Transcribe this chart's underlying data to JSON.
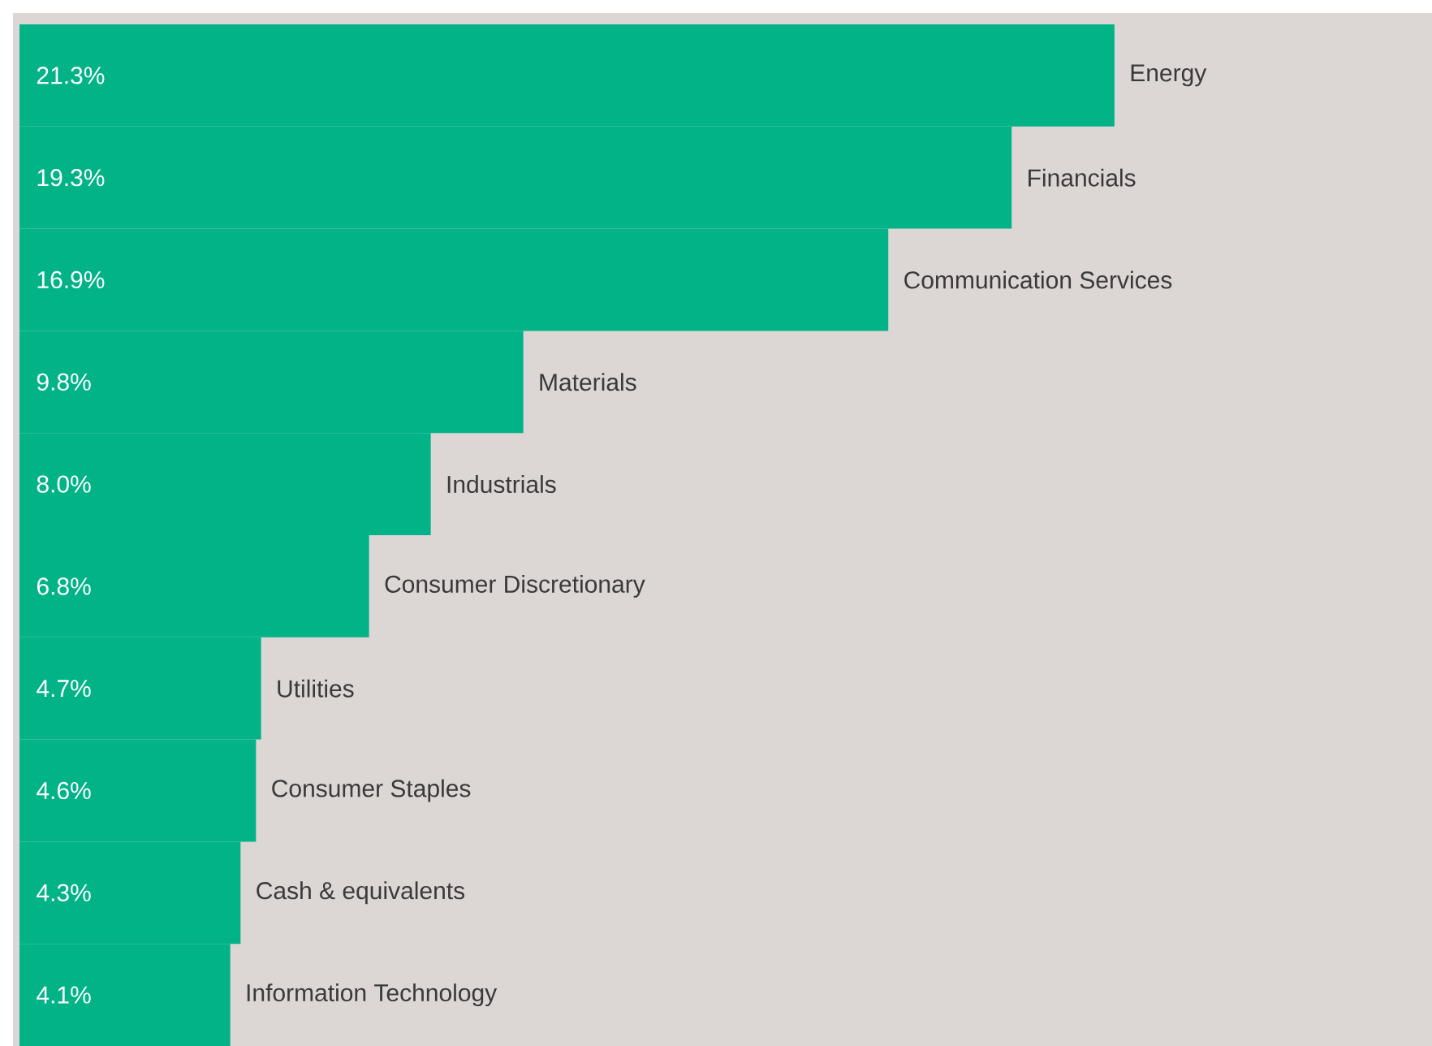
{
  "chart_data": {
    "type": "bar",
    "orientation": "horizontal",
    "color": "#02b388",
    "categories": [
      "Energy",
      "Financials",
      "Communication Services",
      "Materials",
      "Industrials",
      "Consumer Discretionary",
      "Utilities",
      "Consumer Staples",
      "Cash & equivalents",
      "Information Technology"
    ],
    "values": [
      21.3,
      19.3,
      16.9,
      9.8,
      8.0,
      6.8,
      4.7,
      4.6,
      4.3,
      4.1
    ],
    "value_labels": [
      "21.3%",
      "19.3%",
      "16.9%",
      "9.8%",
      "8.0%",
      "6.8%",
      "4.7%",
      "4.6%",
      "4.3%",
      "4.1%"
    ]
  }
}
